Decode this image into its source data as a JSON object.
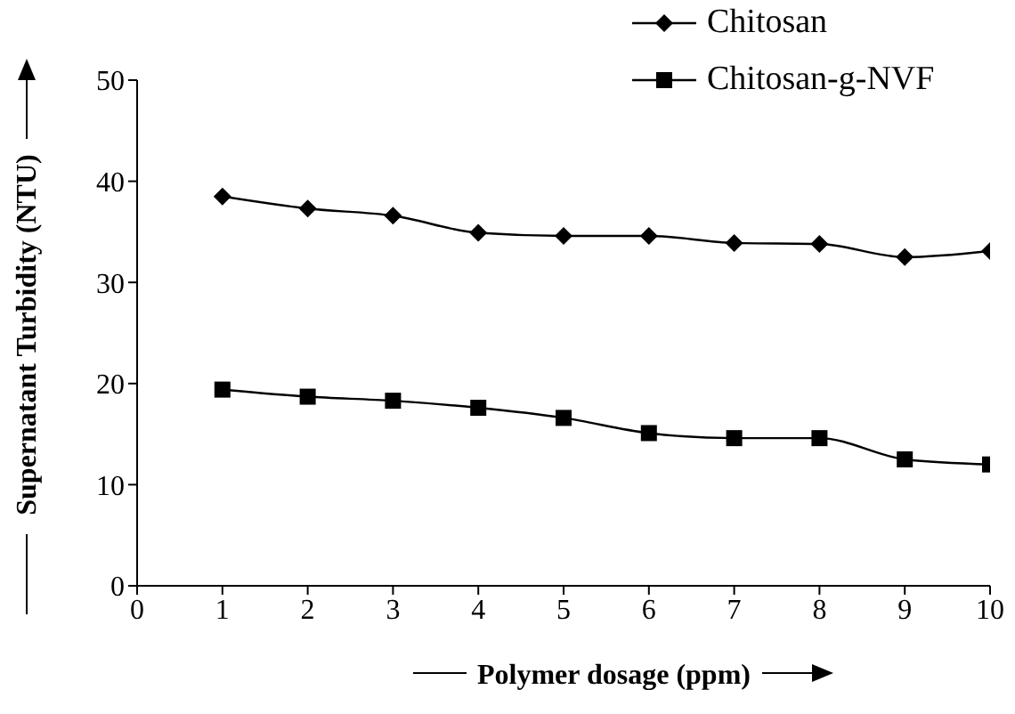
{
  "chart_data": {
    "type": "line",
    "xlabel": "Polymer dosage (ppm)",
    "ylabel": "Supernatant Turbidity (NTU)",
    "x": [
      1,
      2,
      3,
      4,
      5,
      6,
      7,
      8,
      9,
      10
    ],
    "series": [
      {
        "name": "Chitosan",
        "color": "#000000",
        "marker": "diamond",
        "values": [
          38.5,
          37.3,
          36.6,
          34.9,
          34.6,
          34.6,
          33.9,
          33.8,
          32.5,
          33.1
        ]
      },
      {
        "name": "Chitosan-g-NVF",
        "color": "#000000",
        "marker": "square",
        "values": [
          19.4,
          18.7,
          18.3,
          17.6,
          16.6,
          15.1,
          14.6,
          14.6,
          12.5,
          12.0
        ]
      }
    ],
    "xlim": [
      0,
      10
    ],
    "xticks": [
      0,
      1,
      2,
      3,
      4,
      5,
      6,
      7,
      8,
      9,
      10
    ],
    "ylim": [
      0,
      50
    ],
    "yticks": [
      0,
      10,
      20,
      30,
      40,
      50
    ],
    "grid": false,
    "legend": "top right",
    "line_style": "solid"
  }
}
